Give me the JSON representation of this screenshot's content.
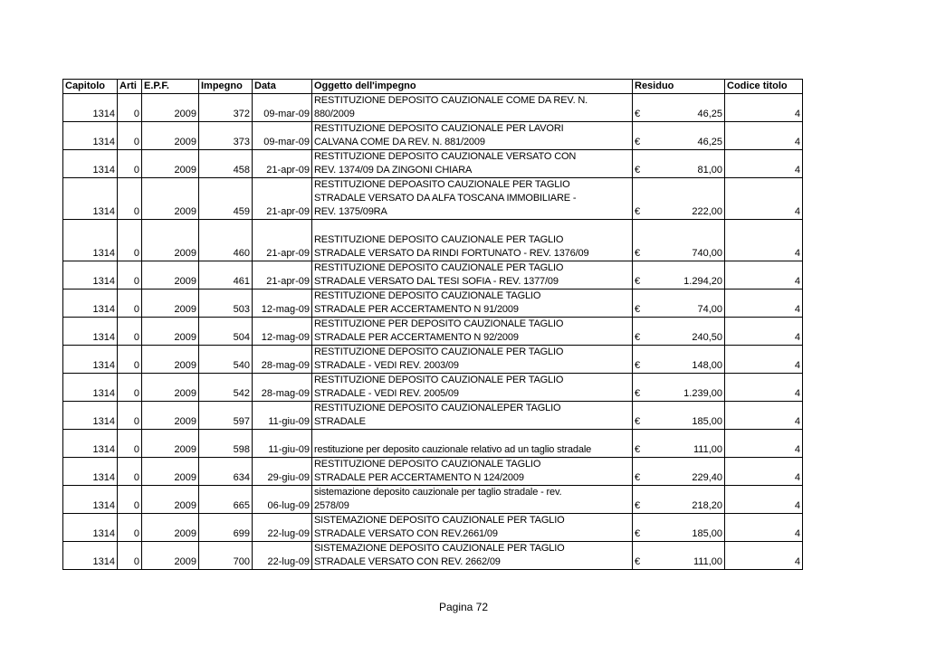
{
  "headers": [
    "Capitolo",
    "Arti",
    "E.P.F.",
    "Impegno",
    "Data",
    "Oggetto dell'impegno",
    "Residuo",
    "Codice titolo"
  ],
  "currency_symbol": "€",
  "rows": [
    {
      "capitolo": "1314",
      "arti": "0",
      "epf": "2009",
      "impegno": "372",
      "data": "09-mar-09",
      "oggetto": [
        "RESTITUZIONE DEPOSITO CAUZIONALE COME DA REV. N.",
        "880/2009"
      ],
      "residuo": "46,25",
      "codice": "4"
    },
    {
      "capitolo": "1314",
      "arti": "0",
      "epf": "2009",
      "impegno": "373",
      "data": "09-mar-09",
      "oggetto": [
        "RESTITUZIONE DEPOSITO CAUZIONALE PER LAVORI",
        "CALVANA COME DA REV. N. 881/2009"
      ],
      "residuo": "46,25",
      "codice": "4"
    },
    {
      "capitolo": "1314",
      "arti": "0",
      "epf": "2009",
      "impegno": "458",
      "data": "21-apr-09",
      "oggetto": [
        "RESTITUZIONE DEPOSITO CAUZIONALE VERSATO CON",
        "REV. 1374/09 DA ZINGONI CHIARA"
      ],
      "residuo": "81,00",
      "codice": "4"
    },
    {
      "capitolo": "1314",
      "arti": "0",
      "epf": "2009",
      "impegno": "459",
      "data": "21-apr-09",
      "oggetto": [
        "RESTITUZIONE DEPOASITO CAUZIONALE PER TAGLIO",
        "STRADALE VERSATO DA ALFA TOSCANA IMMOBILIARE -",
        "REV. 1375/09RA"
      ],
      "residuo": "222,00",
      "codice": "4"
    },
    {
      "capitolo": "1314",
      "arti": "0",
      "epf": "2009",
      "impegno": "460",
      "data": "21-apr-09",
      "oggetto": [
        "",
        "RESTITUZIONE DEPOSITO CAUZIONALE PER TAGLIO",
        "STRADALE VERSATO DA RINDI FORTUNATO - REV. 1376/09"
      ],
      "residuo": "740,00",
      "codice": "4"
    },
    {
      "capitolo": "1314",
      "arti": "0",
      "epf": "2009",
      "impegno": "461",
      "data": "21-apr-09",
      "oggetto": [
        "RESTITUZIONE DEPOSITO CAUZIONALE PER TAGLIO",
        "STRADALE VERSATO DAL TESI SOFIA - REV. 1377/09"
      ],
      "residuo": "1.294,20",
      "codice": "4"
    },
    {
      "capitolo": "1314",
      "arti": "0",
      "epf": "2009",
      "impegno": "503",
      "data": "12-mag-09",
      "oggetto": [
        "RESTITUZIONE DEPOSITO CAUZIONALE TAGLIO",
        "STRADALE PER ACCERTAMENTO N 91/2009"
      ],
      "residuo": "74,00",
      "codice": "4"
    },
    {
      "capitolo": "1314",
      "arti": "0",
      "epf": "2009",
      "impegno": "504",
      "data": "12-mag-09",
      "oggetto": [
        "RESTITUZIONE PER DEPOSITO CAUZIONALE TAGLIO",
        "STRADALE PER ACCERTAMENTO N 92/2009"
      ],
      "residuo": "240,50",
      "codice": "4"
    },
    {
      "capitolo": "1314",
      "arti": "0",
      "epf": "2009",
      "impegno": "540",
      "data": "28-mag-09",
      "oggetto": [
        "RESTITUZIONE DEPOSITO CAUZIONALE PER TAGLIO",
        "STRADALE - VEDI REV. 2003/09"
      ],
      "residuo": "148,00",
      "codice": "4"
    },
    {
      "capitolo": "1314",
      "arti": "0",
      "epf": "2009",
      "impegno": "542",
      "data": "28-mag-09",
      "oggetto": [
        "RESTITUZIONE DEPOSITO CAUZIONALE PER TAGLIO",
        "STRADALE - VEDI REV. 2005/09"
      ],
      "residuo": "1.239,00",
      "codice": "4"
    },
    {
      "capitolo": "1314",
      "arti": "0",
      "epf": "2009",
      "impegno": "597",
      "data": "11-giu-09",
      "oggetto": [
        "RESTITUZIONE DEPOSITO CAUZIONALEPER TAGLIO",
        "STRADALE"
      ],
      "residuo": "185,00",
      "codice": "4"
    },
    {
      "capitolo": "1314",
      "arti": "0",
      "epf": "2009",
      "impegno": "598",
      "data": "11-giu-09",
      "oggetto": [
        "",
        "restituzione per deposito cauzionale relativo ad un taglio stradale"
      ],
      "residuo": "111,00",
      "codice": "4"
    },
    {
      "capitolo": "1314",
      "arti": "0",
      "epf": "2009",
      "impegno": "634",
      "data": "29-giu-09",
      "oggetto": [
        "RESTITUZIONE DEPOSITO CAUZIONALE TAGLIO",
        "STRADALE PER ACCERTAMENTO N 124/2009"
      ],
      "residuo": "229,40",
      "codice": "4"
    },
    {
      "capitolo": "1314",
      "arti": "0",
      "epf": "2009",
      "impegno": "665",
      "data": "06-lug-09",
      "oggetto": [
        "sistemazione deposito cauzionale per taglio stradale - rev.",
        "2578/09"
      ],
      "residuo": "218,20",
      "codice": "4"
    },
    {
      "capitolo": "1314",
      "arti": "0",
      "epf": "2009",
      "impegno": "699",
      "data": "22-lug-09",
      "oggetto": [
        "SISTEMAZIONE DEPOSITO CAUZIONALE PER TAGLIO",
        "STRADALE  VERSATO CON REV.2661/09"
      ],
      "residuo": "185,00",
      "codice": "4"
    },
    {
      "capitolo": "1314",
      "arti": "0",
      "epf": "2009",
      "impegno": "700",
      "data": "22-lug-09",
      "oggetto": [
        "SISTEMAZIONE DEPOSITO CAUZIONALE PER TAGLIO",
        "STRADALE VERSATO CON REV. 2662/09"
      ],
      "residuo": "111,00",
      "codice": "4"
    }
  ],
  "footer": "Pagina 72"
}
